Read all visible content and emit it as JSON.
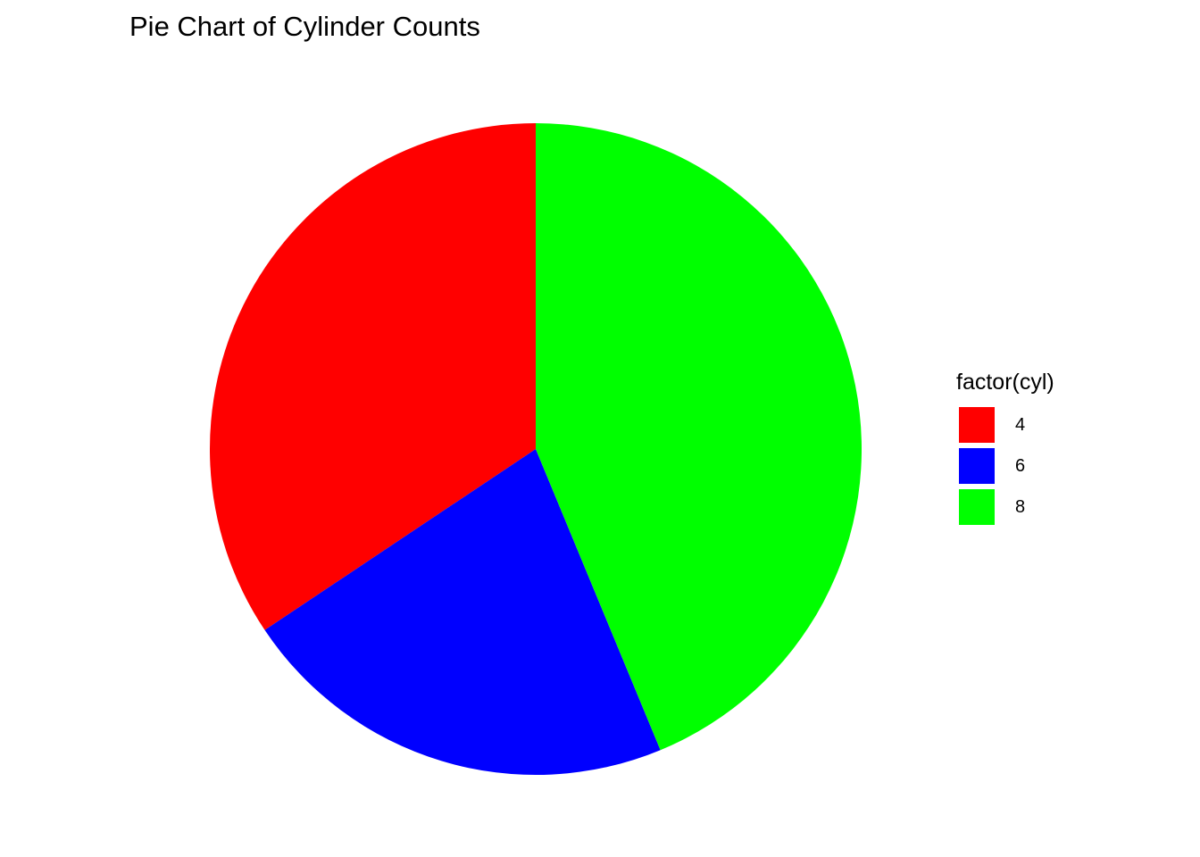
{
  "chart_data": {
    "type": "pie",
    "title": "Pie Chart of Cylinder Counts",
    "legend_title": "factor(cyl)",
    "legend_position": "right",
    "start": "top",
    "direction": "counterclockwise",
    "slices": [
      {
        "label": "4",
        "value": 11,
        "color": "#FF0000"
      },
      {
        "label": "6",
        "value": 7,
        "color": "#0000FF"
      },
      {
        "label": "8",
        "value": 14,
        "color": "#00FF00"
      }
    ]
  }
}
